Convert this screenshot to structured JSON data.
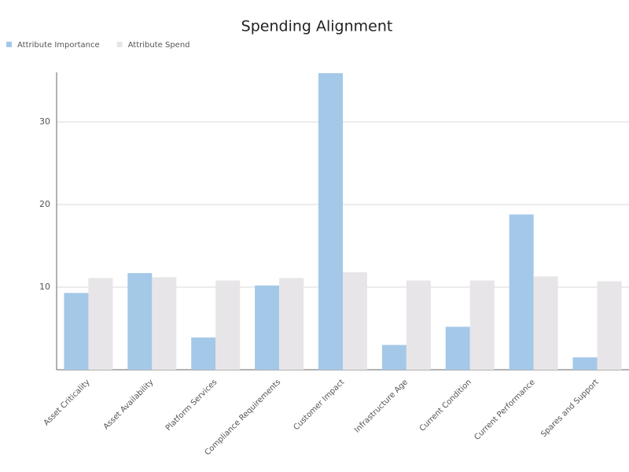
{
  "chart_data": {
    "type": "bar",
    "title": "Spending Alignment",
    "categories": [
      "Asset Criticality",
      "Asset Availability",
      "Platform Services",
      "Compliance Requirements",
      "Customer Impact",
      "Infrastructure Age",
      "Current Condition",
      "Current Performance",
      "Spares and Support"
    ],
    "series": [
      {
        "name": "Attribute Importance",
        "color": "#a4c8e8",
        "values": [
          9.3,
          11.7,
          3.9,
          10.2,
          35.9,
          3.0,
          5.2,
          18.8,
          1.5
        ]
      },
      {
        "name": "Attribute Spend",
        "color": "#e7e5e7",
        "values": [
          11.1,
          11.2,
          10.8,
          11.1,
          11.8,
          10.8,
          10.8,
          11.3,
          10.7
        ]
      }
    ],
    "ylim": [
      0,
      36
    ],
    "yticks": [
      10,
      20,
      30
    ],
    "grid": true,
    "legend": "top-left"
  }
}
